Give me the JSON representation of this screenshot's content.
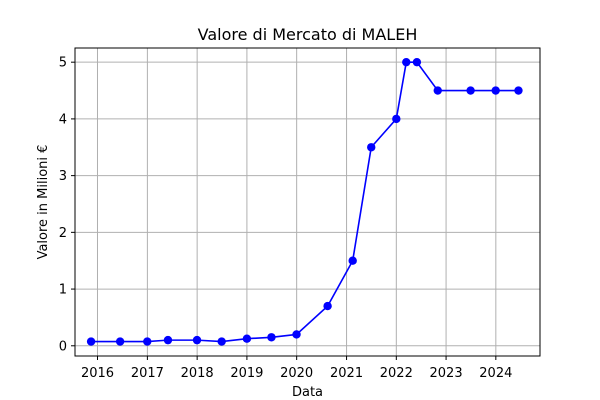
{
  "chart_data": {
    "type": "line",
    "title": "Valore di Mercato di MALEH",
    "xlabel": "Data",
    "ylabel": "Valore in Milioni €",
    "x_ticks": [
      "2016",
      "2017",
      "2018",
      "2019",
      "2020",
      "2021",
      "2022",
      "2023",
      "2024"
    ],
    "y_ticks": [
      "0",
      "1",
      "2",
      "3",
      "4",
      "5"
    ],
    "xlim": [
      "2015-07-20",
      "2024-11-20"
    ],
    "ylim": [
      -0.18,
      5.25
    ],
    "grid": true,
    "series": [
      {
        "color": "#0000ff",
        "x": [
          "2015-11-15",
          "2016-06-15",
          "2016-12-31",
          "2017-06-01",
          "2017-12-31",
          "2018-06-30",
          "2019-01-01",
          "2019-06-30",
          "2019-12-31",
          "2020-08-15",
          "2021-02-15",
          "2021-07-01",
          "2022-01-01",
          "2022-03-15",
          "2022-06-01",
          "2022-11-01",
          "2023-06-30",
          "2023-12-31",
          "2024-06-15"
        ],
        "y": [
          0.075,
          0.075,
          0.075,
          0.1,
          0.1,
          0.075,
          0.125,
          0.15,
          0.2,
          0.7,
          1.5,
          3.5,
          4.0,
          5.0,
          5.0,
          4.5,
          4.5,
          4.5,
          4.5
        ]
      }
    ]
  }
}
